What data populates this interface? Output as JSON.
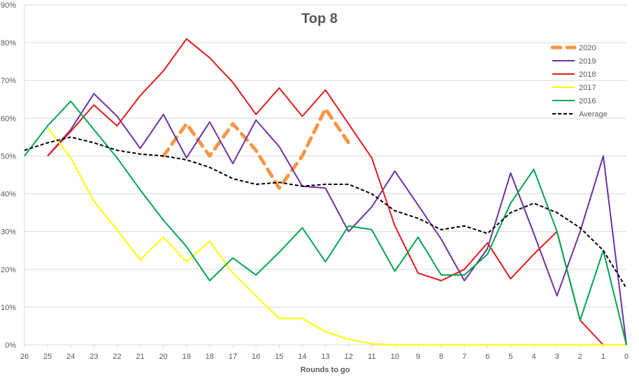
{
  "chart_data": {
    "type": "line",
    "title": "Top 8",
    "xlabel": "Rounds to go",
    "ylabel": "",
    "x": [
      26,
      25,
      24,
      23,
      22,
      21,
      20,
      19,
      18,
      17,
      16,
      15,
      14,
      13,
      12,
      11,
      10,
      9,
      8,
      7,
      6,
      5,
      4,
      3,
      2,
      1,
      0
    ],
    "y_ticks": [
      "0%",
      "10%",
      "20%",
      "30%",
      "40%",
      "50%",
      "60%",
      "70%",
      "80%",
      "90%"
    ],
    "ylim": [
      0,
      90
    ],
    "grid": true,
    "legend_position": "top-right",
    "series": [
      {
        "name": "2020",
        "color": "#f79646",
        "style": "dashed-thick",
        "values": [
          null,
          null,
          null,
          null,
          null,
          null,
          50,
          58.5,
          50,
          58.5,
          51.5,
          41.5,
          50,
          62.5,
          53.5,
          null,
          null,
          null,
          null,
          null,
          null,
          null,
          null,
          null,
          null,
          null,
          null
        ]
      },
      {
        "name": "2019",
        "color": "#7030a0",
        "style": "solid",
        "values": [
          null,
          50,
          57,
          66.5,
          60.5,
          52,
          61,
          49.5,
          59,
          48,
          59.5,
          52.5,
          42,
          41.5,
          30,
          36.5,
          46,
          37,
          28,
          17,
          25.5,
          45.5,
          29.5,
          13,
          30,
          50,
          0
        ]
      },
      {
        "name": "2018",
        "color": "#e31a1c",
        "style": "solid",
        "values": [
          null,
          50,
          56.5,
          63.5,
          58,
          66,
          72.5,
          81,
          76,
          69.5,
          61,
          68,
          60.5,
          67.5,
          58.5,
          49.5,
          31.5,
          19,
          17,
          20,
          27,
          17.5,
          24,
          30,
          6.5,
          0,
          null
        ]
      },
      {
        "name": "2017",
        "color": "#ffff00",
        "style": "solid",
        "values": [
          null,
          57.5,
          49.5,
          38,
          30.5,
          22.5,
          28.5,
          22,
          27.5,
          19,
          13,
          7,
          7,
          3.5,
          1.5,
          0.3,
          0,
          0,
          0,
          0,
          0,
          0,
          0,
          0,
          0,
          0,
          0
        ]
      },
      {
        "name": "2016",
        "color": "#00a651",
        "style": "solid",
        "values": [
          50,
          58,
          64.5,
          57,
          49.5,
          41,
          33,
          26,
          17,
          23,
          18.5,
          24.5,
          31,
          22,
          31.5,
          30.5,
          19.5,
          28.5,
          18.5,
          18.5,
          24,
          37.5,
          46.5,
          30,
          6.5,
          25,
          0
        ]
      },
      {
        "name": "Average",
        "color": "#000000",
        "style": "dashed",
        "values": [
          51.5,
          53.5,
          55,
          53.5,
          51.5,
          50.5,
          50,
          49,
          47,
          44,
          42.5,
          43,
          42,
          42.5,
          42.5,
          40,
          35.5,
          33.5,
          30.5,
          31.5,
          29.5,
          35,
          37.5,
          35,
          31,
          25,
          15
        ]
      }
    ]
  }
}
